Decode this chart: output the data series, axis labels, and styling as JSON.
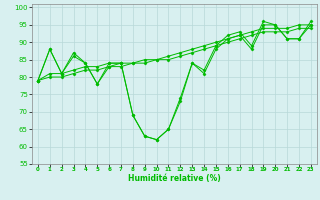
{
  "title": "",
  "xlabel": "Humidité relative (%)",
  "ylabel": "",
  "bg_color": "#d8f0f0",
  "grid_color": "#b8d8d8",
  "line_color": "#00bb00",
  "marker_color": "#00bb00",
  "xlim": [
    -0.5,
    23.5
  ],
  "ylim": [
    55,
    101
  ],
  "yticks": [
    55,
    60,
    65,
    70,
    75,
    80,
    85,
    90,
    95,
    100
  ],
  "xticks": [
    0,
    1,
    2,
    3,
    4,
    5,
    6,
    7,
    8,
    9,
    10,
    11,
    12,
    13,
    14,
    15,
    16,
    17,
    18,
    19,
    20,
    21,
    22,
    23
  ],
  "s1": [
    79,
    88,
    81,
    87,
    84,
    78,
    84,
    84,
    69,
    63,
    62,
    65,
    74,
    84,
    82,
    89,
    92,
    93,
    89,
    96,
    95,
    91,
    91,
    96
  ],
  "s2": [
    79,
    88,
    81,
    86,
    84,
    78,
    83,
    84,
    69,
    63,
    62,
    65,
    73,
    84,
    81,
    88,
    91,
    92,
    88,
    95,
    95,
    91,
    91,
    95
  ],
  "s3": [
    79,
    81,
    81,
    82,
    83,
    83,
    84,
    84,
    84,
    85,
    85,
    86,
    87,
    88,
    89,
    90,
    91,
    92,
    93,
    94,
    94,
    94,
    95,
    95
  ],
  "s4": [
    79,
    80,
    80,
    81,
    82,
    82,
    83,
    83,
    84,
    84,
    85,
    85,
    86,
    87,
    88,
    89,
    90,
    91,
    92,
    93,
    93,
    93,
    94,
    94
  ]
}
